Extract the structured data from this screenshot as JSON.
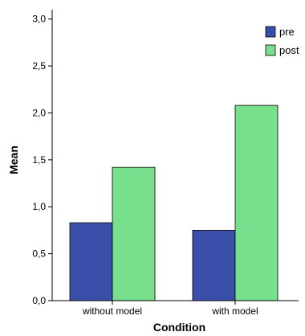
{
  "chart_data": {
    "type": "bar",
    "xlabel": "Condition",
    "ylabel": "Mean",
    "categories": [
      "without model",
      "with model"
    ],
    "series": [
      {
        "name": "pre",
        "values": [
          0.83,
          0.75
        ],
        "color": "#3a4faa"
      },
      {
        "name": "post",
        "values": [
          1.42,
          2.08
        ],
        "color": "#78e08c"
      }
    ],
    "ylim": [
      0,
      3.1
    ],
    "yticks": [
      0,
      0.5,
      1.0,
      1.5,
      2.0,
      2.5,
      3.0
    ],
    "ytick_labels": [
      "0,0",
      "0,5",
      "1,0",
      "1,5",
      "2,0",
      "2,5",
      "3,0"
    ],
    "grid": false,
    "legend": "top-right"
  }
}
